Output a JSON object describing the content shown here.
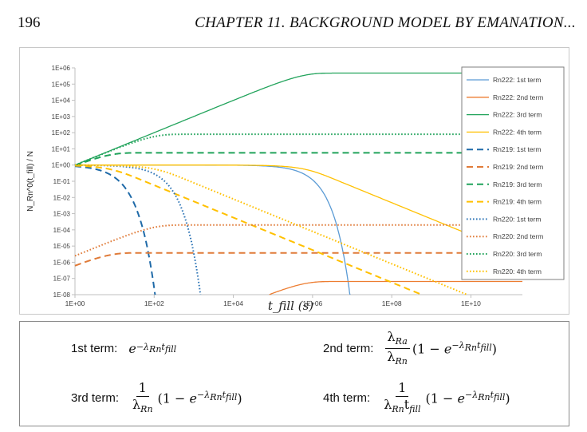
{
  "header": {
    "page_number": "196",
    "running_head": "CHAPTER 11.  BACKGROUND MODEL BY EMANATION..."
  },
  "chart_data": {
    "type": "line",
    "xlabel": "t_fill  (s)",
    "ylabel": "N_Rn^0(t_fill) / N",
    "x_scale": "log",
    "y_scale": "log",
    "xlim_log10": [
      0,
      11.3
    ],
    "ylim_log10": [
      -8,
      6
    ],
    "x_ticks": [
      "1E+00",
      "1E+02",
      "1E+04",
      "1E+06",
      "1E+08",
      "1E+10"
    ],
    "y_ticks": [
      "1E+06",
      "1E+05",
      "1E+04",
      "1E+03",
      "1E+02",
      "1E+01",
      "1E+00",
      "1E-01",
      "1E-02",
      "1E-03",
      "1E-04",
      "1E-05",
      "1E-06",
      "1E-07",
      "1E-08"
    ],
    "grid": false,
    "legend_position": "right",
    "series": [
      {
        "name": "Rn222: 1st term",
        "color": "#5b9bd5",
        "dash": "solid",
        "x_log10": [
          0,
          5.0,
          5.5,
          6.0,
          6.3,
          6.5,
          6.7,
          6.8,
          6.9,
          6.98
        ],
        "y_log10": [
          0,
          -0.002,
          -0.006,
          -0.019,
          -0.037,
          -0.059,
          -0.094,
          -0.117,
          -0.146,
          -8.0
        ],
        "curve": "decay",
        "k": 2.1e-06
      },
      {
        "name": "Rn222: 2nd term",
        "color": "#ed7d31",
        "dash": "solid",
        "curve": "p2",
        "k": 2.1e-06,
        "c": 6.5e-08
      },
      {
        "name": "Rn222: 3rd term",
        "color": "#21a35b",
        "dash": "solid",
        "curve": "p3",
        "k": 2.1e-06
      },
      {
        "name": "Rn222: 4th term",
        "color": "#ffc000",
        "dash": "solid",
        "curve": "p4",
        "k": 2.1e-06
      },
      {
        "name": "Rn219: 1st term",
        "color": "#1f6aa8",
        "dash": "dash",
        "curve": "decay",
        "k": 0.175
      },
      {
        "name": "Rn219: 2nd term",
        "color": "#e07b39",
        "dash": "dash",
        "curve": "p2",
        "k": 0.175,
        "c": 3.8e-06
      },
      {
        "name": "Rn219: 3rd term",
        "color": "#21a35b",
        "dash": "dash",
        "curve": "p3",
        "k": 0.175
      },
      {
        "name": "Rn219: 4th term",
        "color": "#ffc000",
        "dash": "dash",
        "curve": "p4",
        "k": 0.175
      },
      {
        "name": "Rn220: 1st term",
        "color": "#2e75b6",
        "dash": "dot",
        "curve": "decay",
        "k": 0.0125
      },
      {
        "name": "Rn220: 2nd term",
        "color": "#e07b39",
        "dash": "dot",
        "curve": "p2",
        "k": 0.0125,
        "c": 0.0002
      },
      {
        "name": "Rn220: 3rd term",
        "color": "#21a35b",
        "dash": "dot",
        "curve": "p3",
        "k": 0.0125
      },
      {
        "name": "Rn220: 4th term",
        "color": "#ffc000",
        "dash": "dot",
        "curve": "p4",
        "k": 0.0125
      }
    ]
  },
  "formulas": {
    "first": {
      "label": "1st term:"
    },
    "second": {
      "label": "2nd term:"
    },
    "third": {
      "label": "3rd term:"
    },
    "fourth": {
      "label": "4th term:"
    }
  }
}
